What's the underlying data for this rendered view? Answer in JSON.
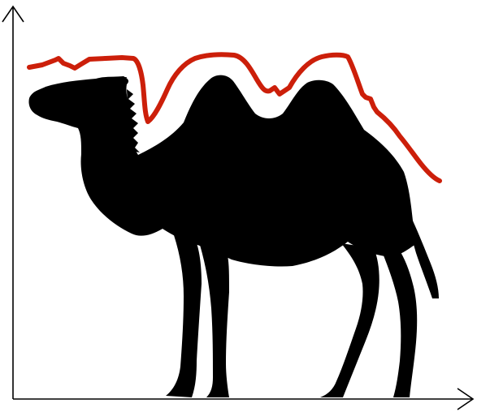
{
  "illustration": {
    "subject": "camel-silhouette",
    "trend_line_color": "#cc1f0a",
    "silhouette_color": "#000000",
    "axis_color": "#000000",
    "background": "#ffffff"
  }
}
